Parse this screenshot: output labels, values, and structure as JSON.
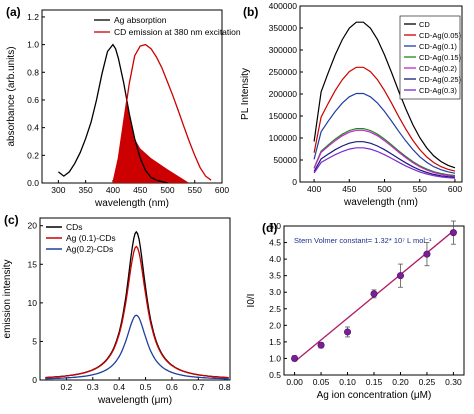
{
  "chart_data": [
    {
      "panel_label": "(a)",
      "type": "line",
      "xlabel": "wavelength (nm)",
      "ylabel": "absorbance (arb.units)",
      "xlim": [
        270,
        600
      ],
      "ylim": [
        0,
        1.25
      ],
      "xticks": [
        "300",
        "350",
        "400",
        "450",
        "500",
        "550",
        "600"
      ],
      "yticks": [
        "0.0",
        "0.2",
        "0.4",
        "0.6",
        "0.8",
        "1.0",
        "1.2"
      ],
      "legend_position": "top-right",
      "overlap_shading": "red filled region under emission curve, 400-540 nm",
      "series": [
        {
          "name": "Ag absorption",
          "color": "#000000",
          "x": [
            300,
            310,
            320,
            330,
            340,
            350,
            360,
            370,
            380,
            390,
            400,
            405,
            410,
            420,
            430,
            440,
            450,
            460,
            470,
            480,
            490,
            500
          ],
          "y": [
            0.08,
            0.05,
            0.08,
            0.14,
            0.22,
            0.32,
            0.44,
            0.6,
            0.79,
            0.95,
            1.0,
            0.97,
            0.9,
            0.72,
            0.5,
            0.32,
            0.18,
            0.09,
            0.04,
            0.02,
            0.01,
            0.0
          ]
        },
        {
          "name": "CD emission at 380 nm excitation",
          "color": "#cc0000",
          "x": [
            400,
            410,
            420,
            430,
            440,
            450,
            460,
            470,
            480,
            490,
            500,
            510,
            520,
            530,
            540,
            550,
            560,
            570,
            580
          ],
          "y": [
            0.0,
            0.18,
            0.45,
            0.72,
            0.92,
            0.99,
            1.0,
            0.97,
            0.91,
            0.83,
            0.73,
            0.63,
            0.52,
            0.41,
            0.3,
            0.2,
            0.11,
            0.05,
            0.02
          ]
        }
      ]
    },
    {
      "panel_label": "(b)",
      "type": "line",
      "xlabel": "wavelength (nm)",
      "ylabel": "PL Intensity",
      "xlim": [
        380,
        610
      ],
      "ylim": [
        0,
        400000
      ],
      "xticks": [
        "400",
        "450",
        "500",
        "550",
        "600"
      ],
      "yticks": [
        "0",
        "50000",
        "100000",
        "150000",
        "200000",
        "250000",
        "300000",
        "350000",
        "400000"
      ],
      "legend_position": "top-right",
      "series": [
        {
          "name": "CD",
          "color": "#000000",
          "peak": 365000,
          "base": 70000
        },
        {
          "name": "CD-Ag(0.05)",
          "color": "#cc0000",
          "peak": 262000,
          "base": 55000
        },
        {
          "name": "CD-Ag(0.1)",
          "color": "#1f3fa0",
          "peak": 202000,
          "base": 45000
        },
        {
          "name": "CD-Ag(0.15)",
          "color": "#1a8a1a",
          "peak": 122000,
          "base": 35000
        },
        {
          "name": "CD-Ag(0.2)",
          "color": "#cc22cc",
          "peak": 118000,
          "base": 30000
        },
        {
          "name": "CD-Ag(0.25)",
          "color": "#1a1a7a",
          "peak": 92000,
          "base": 25000
        },
        {
          "name": "CD-Ag(0.3)",
          "color": "#7a2ad0",
          "peak": 78000,
          "base": 20000
        }
      ],
      "x": [
        400,
        410,
        420,
        430,
        440,
        450,
        460,
        470,
        480,
        490,
        500,
        510,
        520,
        530,
        540,
        550,
        560,
        570,
        580,
        590,
        600
      ]
    },
    {
      "panel_label": "(c)",
      "type": "line",
      "xlabel": "wavelength (μm)",
      "ylabel": "emission intensity",
      "xlim": [
        0.1,
        0.82
      ],
      "ylim": [
        0,
        21
      ],
      "xticks": [
        "0.2",
        "0.3",
        "0.4",
        "0.5",
        "0.6",
        "0.7",
        "0.8"
      ],
      "yticks": [
        "0",
        "5",
        "10",
        "15",
        "20"
      ],
      "legend_position": "top-left",
      "series": [
        {
          "name": "CDs",
          "color": "#000000",
          "peak": 19.2
        },
        {
          "name": "Ag (0.1)-CDs",
          "color": "#cc0000",
          "peak": 17.3
        },
        {
          "name": "Ag(0.2)-CDs",
          "color": "#1f3fa0",
          "peak": 8.4
        }
      ],
      "center": 0.465,
      "x": [
        0.12,
        0.15,
        0.2,
        0.25,
        0.3,
        0.35,
        0.38,
        0.4,
        0.42,
        0.44,
        0.45,
        0.46,
        0.465,
        0.47,
        0.48,
        0.49,
        0.51,
        0.53,
        0.55,
        0.6,
        0.65,
        0.7,
        0.75,
        0.8,
        0.82
      ]
    },
    {
      "panel_label": "(d)",
      "type": "scatter",
      "xlabel": "Ag ion concentration (μM)",
      "ylabel": "I0/I",
      "annotation": "Stern Volmer constant= 1.32* 10⁷ L mol⁻¹",
      "xlim": [
        -0.02,
        0.32
      ],
      "ylim": [
        0.5,
        5.0
      ],
      "xticks": [
        "0.00",
        "0.05",
        "0.10",
        "0.15",
        "0.20",
        "0.25",
        "0.30"
      ],
      "yticks": [
        "0.5",
        "1.0",
        "1.5",
        "2.0",
        "2.5",
        "3.0",
        "3.5",
        "4.0",
        "4.5",
        "5.0"
      ],
      "point_color": "#7a1f9a",
      "fit_color": "#b0206a",
      "points": [
        {
          "x": 0.0,
          "y": 1.0,
          "err": 0.08
        },
        {
          "x": 0.05,
          "y": 1.4,
          "err": 0.08
        },
        {
          "x": 0.1,
          "y": 1.8,
          "err": 0.15
        },
        {
          "x": 0.15,
          "y": 2.95,
          "err": 0.12
        },
        {
          "x": 0.2,
          "y": 3.5,
          "err": 0.35
        },
        {
          "x": 0.25,
          "y": 4.15,
          "err": 0.35
        },
        {
          "x": 0.3,
          "y": 4.8,
          "err": 0.35
        }
      ],
      "fit": {
        "x": [
          0.0,
          0.3
        ],
        "y": [
          0.9,
          4.85
        ]
      }
    }
  ]
}
